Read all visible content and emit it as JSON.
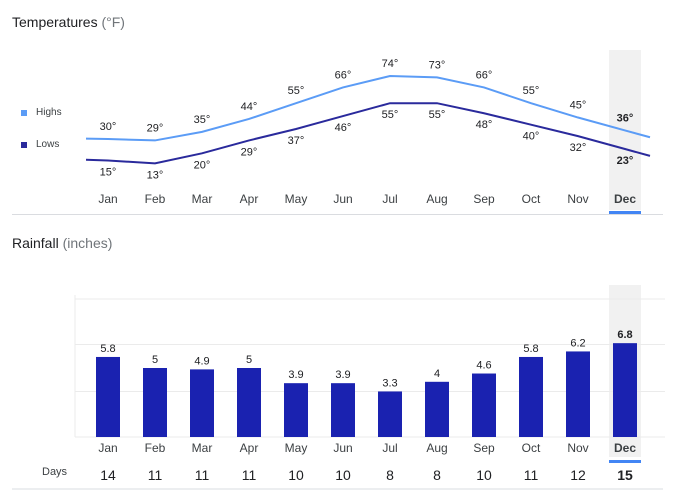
{
  "temperature": {
    "title": "Temperatures",
    "unit": "(°F)",
    "legend": {
      "highs": "Highs",
      "lows": "Lows"
    }
  },
  "rainfall": {
    "title": "Rainfall",
    "unit": "(inches)",
    "days_label": "Days"
  },
  "colors": {
    "highs": "#5b9cf6",
    "lows": "#2a2a9c",
    "bar": "#1a22b0",
    "selected_bg": "#f1f1f1",
    "selected_underline": "#4285f4"
  },
  "selected_month": "Dec",
  "chart_data": [
    {
      "type": "line",
      "title": "Temperatures (°F)",
      "categories": [
        "Jan",
        "Feb",
        "Mar",
        "Apr",
        "May",
        "Jun",
        "Jul",
        "Aug",
        "Sep",
        "Oct",
        "Nov",
        "Dec"
      ],
      "series": [
        {
          "name": "Highs",
          "values": [
            30,
            29,
            35,
            44,
            55,
            66,
            74,
            73,
            66,
            55,
            45,
            36
          ],
          "labels": [
            "30°",
            "29°",
            "35°",
            "44°",
            "55°",
            "66°",
            "74°",
            "73°",
            "66°",
            "55°",
            "45°",
            "36°"
          ]
        },
        {
          "name": "Lows",
          "values": [
            15,
            13,
            20,
            29,
            37,
            46,
            55,
            55,
            48,
            40,
            32,
            23
          ],
          "labels": [
            "15°",
            "13°",
            "20°",
            "29°",
            "37°",
            "46°",
            "55°",
            "55°",
            "48°",
            "40°",
            "32°",
            "23°"
          ]
        }
      ]
    },
    {
      "type": "bar",
      "title": "Rainfall (inches)",
      "categories": [
        "Jan",
        "Feb",
        "Mar",
        "Apr",
        "May",
        "Jun",
        "Jul",
        "Aug",
        "Sep",
        "Oct",
        "Nov",
        "Dec"
      ],
      "values": [
        5.8,
        5,
        4.9,
        5,
        3.9,
        3.9,
        3.3,
        4,
        4.6,
        5.8,
        6.2,
        6.8
      ],
      "value_labels": [
        "5.8",
        "5",
        "4.9",
        "5",
        "3.9",
        "3.9",
        "3.3",
        "4",
        "4.6",
        "5.8",
        "6.2",
        "6.8"
      ],
      "ylim": [
        0,
        15
      ],
      "days": [
        "14",
        "11",
        "11",
        "11",
        "10",
        "10",
        "8",
        "8",
        "10",
        "11",
        "12",
        "15"
      ]
    }
  ]
}
